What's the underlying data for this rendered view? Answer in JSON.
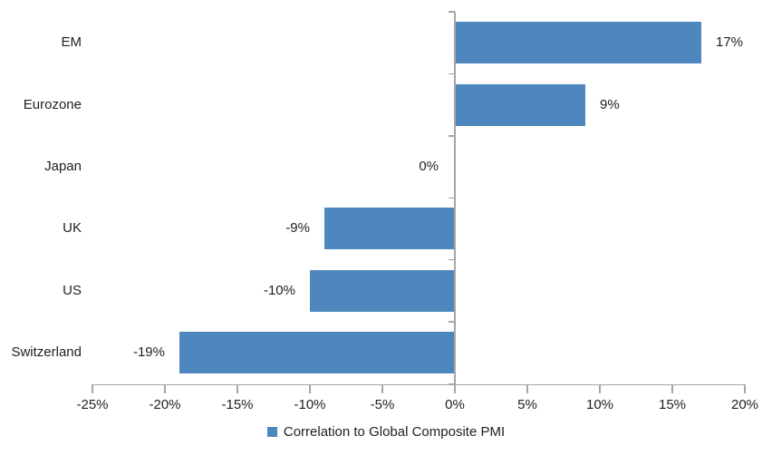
{
  "chart_data": {
    "type": "bar",
    "orientation": "horizontal",
    "categories": [
      "EM",
      "Eurozone",
      "Japan",
      "UK",
      "US",
      "Switzerland"
    ],
    "values": [
      17,
      9,
      0,
      -9,
      -10,
      -19
    ],
    "value_labels": [
      "17%",
      "9%",
      "0%",
      "-9%",
      "-10%",
      "-19%"
    ],
    "x_ticks": [
      -25,
      -20,
      -15,
      -10,
      -5,
      0,
      5,
      10,
      15,
      20
    ],
    "x_tick_labels": [
      "-25%",
      "-20%",
      "-15%",
      "-10%",
      "-5%",
      "0%",
      "5%",
      "10%",
      "15%",
      "20%"
    ],
    "xlim": [
      -25,
      20
    ],
    "grid": false,
    "legend_position": "bottom",
    "legend": [
      {
        "label": "Correlation to Global Composite PMI",
        "color": "#4E87BD"
      }
    ],
    "bar_color": "#4E87BD",
    "axis_color": "#A6A6A6",
    "text_color": "#1F1F1F"
  }
}
